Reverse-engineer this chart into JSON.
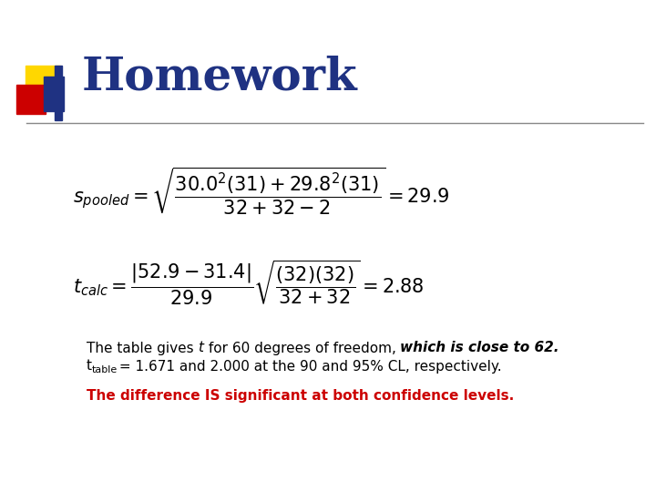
{
  "title": "Homework",
  "title_color": "#1F3282",
  "title_fontsize": 36,
  "background_color": "#ffffff",
  "formula1_image": true,
  "formula2_image": true,
  "text_line1_plain": "The table gives ",
  "text_line1_italic": "t",
  "text_line1_rest": " for 60 degrees of freedom, ",
  "text_line1_italic2": "which is close to 62.",
  "text_line2_start": "t",
  "text_line2_sub": "table",
  "text_line2_rest": " = 1.671 and 2.000 at the 90 and 95% CL, respectively.",
  "text_bold_color": "#000000",
  "red_text": "The difference IS significant at both confidence levels.",
  "red_color": "#CC0000",
  "decoration_gold": "#FFD700",
  "decoration_red": "#CC0000",
  "decoration_blue": "#1F3282",
  "separator_color": "#888888",
  "formula1_latex": "s_{pooled} = \\sqrt{\\frac{30.0^2(31)+29.8^2(31)}{32+32-2}} = 29.9",
  "formula2_latex": "t_{calc} = \\frac{|52.9-31.4|}{29.9}\\sqrt{\\frac{(32)(32)}{32+32}} = 2.88"
}
